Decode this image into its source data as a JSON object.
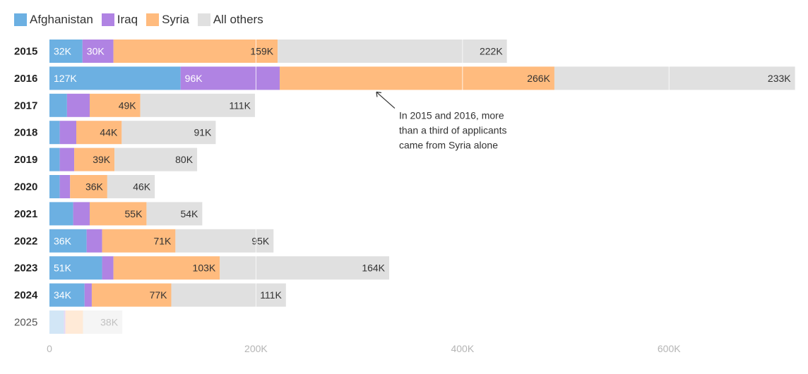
{
  "chart_data": {
    "type": "bar",
    "orientation": "horizontal",
    "stacked": true,
    "categories": [
      "2015",
      "2016",
      "2017",
      "2018",
      "2019",
      "2020",
      "2021",
      "2022",
      "2023",
      "2024",
      "2025"
    ],
    "faded_categories": [
      "2025"
    ],
    "series": [
      {
        "name": "Afghanistan",
        "color": "#6cb0e2",
        "values": [
          32000,
          127000,
          17000,
          10000,
          10000,
          10000,
          23000,
          36000,
          51000,
          34000,
          14000
        ],
        "labels": [
          "32K",
          "127K",
          "",
          "",
          "",
          "",
          "",
          "36K",
          "51K",
          "34K",
          ""
        ],
        "label_color": "#ffffff"
      },
      {
        "name": "Iraq",
        "color": "#b083e3",
        "values": [
          30000,
          96000,
          22000,
          16000,
          14000,
          10000,
          16000,
          15000,
          11000,
          7000,
          1500
        ],
        "labels": [
          "30K",
          "96K",
          "",
          "",
          "",
          "",
          "",
          "",
          "",
          "",
          ""
        ],
        "label_color": "#ffffff"
      },
      {
        "name": "Syria",
        "color": "#ffbb7e",
        "values": [
          159000,
          266000,
          49000,
          44000,
          39000,
          36000,
          55000,
          71000,
          103000,
          77000,
          17000
        ],
        "labels": [
          "159K",
          "266K",
          "49K",
          "44K",
          "39K",
          "36K",
          "55K",
          "71K",
          "103K",
          "77K",
          ""
        ],
        "label_color": "#333333"
      },
      {
        "name": "All others",
        "color": "#e0e0e0",
        "values": [
          222000,
          233000,
          111000,
          91000,
          80000,
          46000,
          54000,
          95000,
          164000,
          111000,
          38000
        ],
        "labels": [
          "222K",
          "233K",
          "111K",
          "91K",
          "80K",
          "46K",
          "54K",
          "95K",
          "164K",
          "111K",
          "38K"
        ],
        "label_color": "#333333"
      }
    ],
    "xlim": [
      0,
      725000
    ],
    "xticks": [
      0,
      200000,
      400000,
      600000
    ],
    "xtick_labels": [
      "0",
      "200K",
      "400K",
      "600K"
    ],
    "grid": true,
    "legend_position": "top-left",
    "annotation": {
      "category": "2016",
      "x": 318000,
      "lines": [
        "In 2015 and 2016, more",
        "than a third of applicants",
        "came from Syria alone"
      ]
    }
  }
}
